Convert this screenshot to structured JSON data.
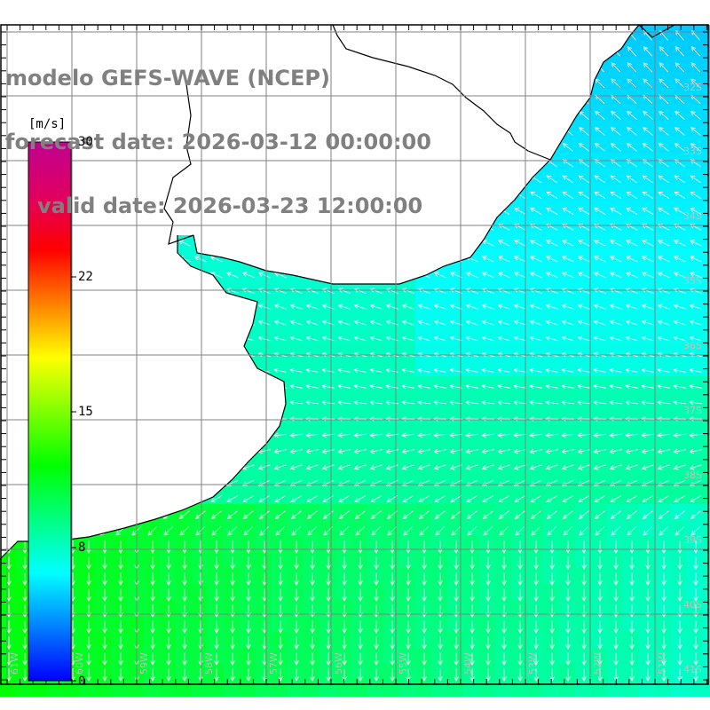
{
  "titles": {
    "model": "modelo GEFS-WAVE (NCEP)",
    "forecast": "forecast date: 2026-03-12 00:00:00",
    "valid": "valid date: 2026-03-23 12:00:00"
  },
  "colorbar": {
    "unit": "[m/s]",
    "ticks": [
      "30",
      "22",
      "15",
      "8",
      "0"
    ],
    "gradient": [
      "#0000ff",
      "#0080ff",
      "#00ffff",
      "#00ff80",
      "#00ff00",
      "#80ff00",
      "#ffff00",
      "#ff8000",
      "#ff0000",
      "#e00060",
      "#c00090"
    ]
  },
  "map": {
    "longitude_labels": [
      "61W",
      "60W",
      "59W",
      "58W",
      "57W",
      "56W",
      "55W",
      "54W",
      "53W",
      "52W",
      "51W"
    ],
    "latitude_labels": [
      "32S",
      "33S",
      "34S",
      "35S",
      "36S",
      "37S",
      "38S",
      "39S",
      "40S",
      "41S"
    ],
    "colors": {
      "land": "#ffffff",
      "grid": "#808080",
      "coast": "#000000",
      "arrows": "#ffffff",
      "title": "#808080"
    }
  }
}
